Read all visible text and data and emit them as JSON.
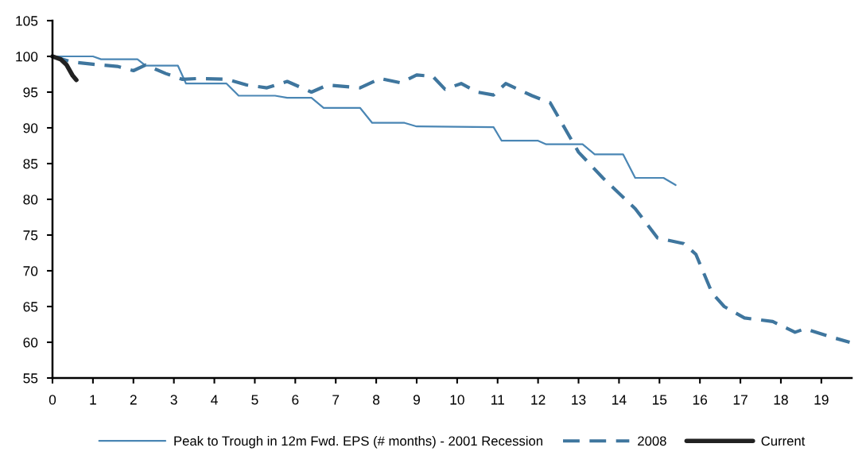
{
  "chart_data": {
    "type": "line",
    "xlim": [
      0,
      19.75
    ],
    "xticks": [
      0,
      1,
      2,
      3,
      4,
      5,
      6,
      7,
      8,
      9,
      10,
      11,
      12,
      13,
      14,
      15,
      16,
      17,
      18,
      19
    ],
    "ylim": [
      55,
      105
    ],
    "yticks": [
      55,
      60,
      65,
      70,
      75,
      80,
      85,
      90,
      95,
      100,
      105
    ],
    "grid": false,
    "legend": "bottom",
    "marker": "none",
    "series": [
      {
        "name": "Peak to Trough in 12m Fwd. EPS (# months) - 2001 Recession",
        "color": "#4a86b4",
        "line_style": "solid",
        "x": [
          0,
          1,
          1.2,
          2.1,
          2.3,
          3.1,
          3.3,
          4.3,
          4.6,
          5.5,
          5.8,
          6.4,
          6.7,
          7.6,
          7.9,
          8.7,
          9.0,
          10.9,
          11.1,
          12.0,
          12.2,
          13.1,
          13.4,
          14.1,
          14.4,
          15.1,
          15.4
        ],
        "values": [
          100,
          100,
          99.6,
          99.6,
          98.7,
          98.7,
          96.2,
          96.2,
          94.5,
          94.5,
          94.2,
          94.2,
          92.8,
          92.8,
          90.7,
          90.7,
          90.2,
          90.1,
          88.2,
          88.2,
          87.7,
          87.7,
          86.3,
          86.3,
          83.0,
          83.0,
          82.0
        ]
      },
      {
        "name": "2008",
        "color": "#3f769e",
        "line_style": "dashed",
        "x": [
          0,
          0.5,
          1,
          1.6,
          2,
          2.3,
          2.8,
          3.2,
          3.6,
          4.3,
          4.8,
          5.3,
          5.8,
          6.4,
          6.8,
          7.6,
          8.1,
          8.6,
          9.0,
          9.4,
          9.7,
          10.1,
          10.5,
          10.9,
          11.2,
          11.85,
          12.3,
          13.0,
          13.6,
          14.4,
          14.95,
          15.6,
          15.9,
          16.3,
          16.6,
          17.1,
          17.8,
          18.35,
          18.6,
          19.2,
          19.7
        ],
        "values": [
          100,
          99.2,
          98.9,
          98.6,
          98.0,
          98.8,
          97.6,
          96.8,
          96.9,
          96.8,
          96.0,
          95.6,
          96.5,
          95.0,
          96.0,
          95.6,
          96.9,
          96.3,
          97.4,
          97.2,
          95.4,
          96.2,
          95.0,
          94.6,
          96.2,
          94.5,
          93.5,
          86.6,
          83.0,
          78.7,
          74.6,
          73.8,
          72.3,
          66.9,
          65.0,
          63.4,
          62.9,
          61.4,
          61.9,
          60.8,
          60.0
        ]
      },
      {
        "name": "Current",
        "color": "#222222",
        "line_style": "solid",
        "x": [
          0,
          0.2,
          0.35,
          0.5,
          0.59
        ],
        "values": [
          100,
          99.6,
          98.8,
          97.3,
          96.7
        ]
      }
    ]
  }
}
